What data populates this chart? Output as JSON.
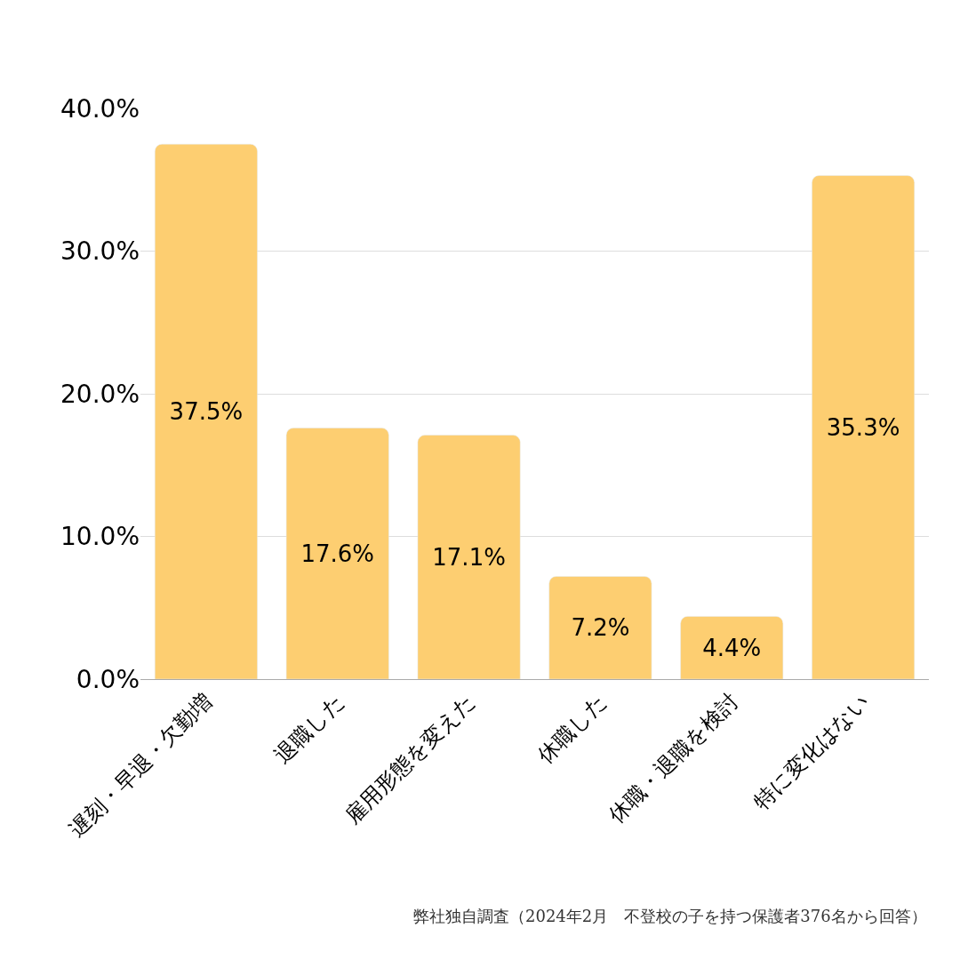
{
  "chart_data": {
    "type": "bar",
    "categories": [
      "遅刻・早退・欠勤増",
      "退職した",
      "雇用形態を変えた",
      "休職した",
      "休職・退職を検討",
      "特に変化はない"
    ],
    "values": [
      37.5,
      17.6,
      17.1,
      7.2,
      4.4,
      35.3
    ],
    "value_labels": [
      "37.5%",
      "17.6%",
      "17.1%",
      "7.2%",
      "4.4%",
      "35.3%"
    ],
    "color": "#fdce71",
    "ylim": [
      0,
      40
    ],
    "yticks": [
      {
        "value": 0,
        "label": "0.0%"
      },
      {
        "value": 10,
        "label": "10.0%"
      },
      {
        "value": 20,
        "label": "20.0%"
      },
      {
        "value": 30,
        "label": "30.0%"
      },
      {
        "value": 40,
        "label": "40.0%"
      }
    ],
    "grid": "y",
    "annotations": [
      "弊社独自調査（2024年2月　不登校の子を持つ保護者376名から回答）"
    ]
  }
}
